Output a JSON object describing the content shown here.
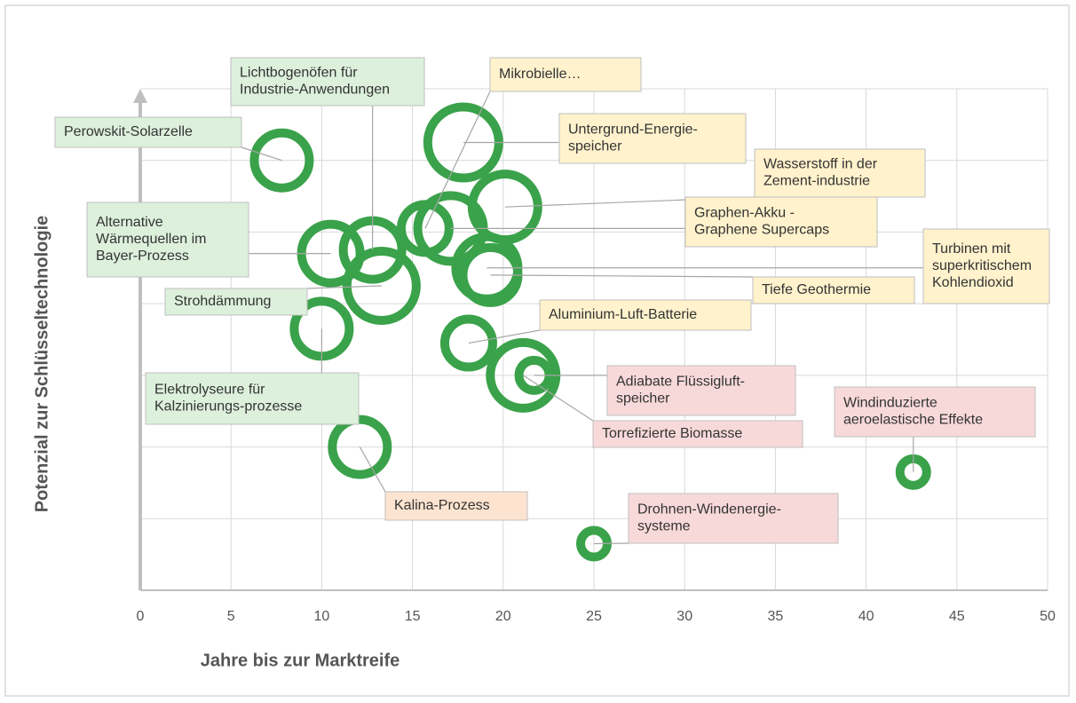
{
  "chart_data": {
    "type": "bubble",
    "xlabel": "Jahre bis zur Marktreife",
    "ylabel": "Potenzial zur Schlüsseltechnologie",
    "xlim": [
      0,
      50
    ],
    "xticks": [
      0,
      5,
      10,
      15,
      20,
      25,
      30,
      35,
      40,
      45,
      50
    ],
    "ylim": [
      0,
      7
    ],
    "yticks": [
      0,
      1,
      2,
      3,
      4,
      5,
      6,
      7
    ],
    "grid": true,
    "color": "#3aa24a",
    "points": [
      {
        "label": [
          "Perowskit-Solarzelle"
        ],
        "x": 7.8,
        "y": 6.0,
        "size": 36,
        "label_color": "#dcf0dc"
      },
      {
        "label": [
          "Lichtbogenöfen für",
          "Industrie-Anwendungen"
        ],
        "x": 12.8,
        "y": 4.75,
        "size": 38,
        "label_color": "#dcf0dc"
      },
      {
        "label": [
          "Alternative",
          "Wärmequellen im",
          "Bayer-Prozess"
        ],
        "x": 10.5,
        "y": 4.7,
        "size": 38,
        "label_color": "#dcf0dc"
      },
      {
        "label": [
          "Strohdämmung"
        ],
        "x": 13.3,
        "y": 4.25,
        "size": 44,
        "label_color": "#dcf0dc"
      },
      {
        "label": [
          "Elektrolyseure für",
          "Kalzinierungs-prozesse"
        ],
        "x": 10.0,
        "y": 3.65,
        "size": 36,
        "label_color": "#dcf0dc"
      },
      {
        "label": [
          "Mikrobielle…"
        ],
        "x": 15.7,
        "y": 5.05,
        "size": 32,
        "label_color": "#fff2cc"
      },
      {
        "label": [
          "Untergrund-Energie-",
          "speicher"
        ],
        "x": 17.8,
        "y": 6.25,
        "size": 45,
        "label_color": "#fff2cc"
      },
      {
        "label": [
          "Wasserstoff in der",
          "Zement-industrie"
        ],
        "x": 20.1,
        "y": 5.35,
        "size": 42,
        "label_color": "#fff2cc"
      },
      {
        "label": [
          "Graphen-Akku -",
          "Graphene Supercaps"
        ],
        "x": 17.1,
        "y": 5.05,
        "size": 42,
        "label_color": "#fff2cc"
      },
      {
        "label": [
          "Turbinen mit",
          "superkritischem",
          "Kohlendioxid"
        ],
        "x": 19.1,
        "y": 4.5,
        "size": 40,
        "label_color": "#fff2cc"
      },
      {
        "label": [
          "Tiefe Geothermie"
        ],
        "x": 19.3,
        "y": 4.4,
        "size": 36,
        "label_color": "#fff2cc"
      },
      {
        "label": [
          "Aluminium-Luft-Batterie"
        ],
        "x": 18.1,
        "y": 3.45,
        "size": 32,
        "label_color": "#fff2cc"
      },
      {
        "label": [
          "Adiabate Flüssigluft-",
          "speicher"
        ],
        "x": 21.7,
        "y": 3.0,
        "size": 22,
        "label_color": "#f8d9d9"
      },
      {
        "label": [
          "Torrefizierte Biomasse"
        ],
        "x": 21.1,
        "y": 3.0,
        "size": 42,
        "label_color": "#f8d9d9"
      },
      {
        "label": [
          "Windinduzierte",
          "aeroelastische Effekte"
        ],
        "x": 42.6,
        "y": 1.65,
        "size": 20,
        "label_color": "#f8d9d9"
      },
      {
        "label": [
          "Kalina-Prozess"
        ],
        "x": 12.1,
        "y": 2.0,
        "size": 36,
        "label_color": "#fde4d0"
      },
      {
        "label": [
          "Drohnen-Windenergie-",
          "systeme"
        ],
        "x": 25.0,
        "y": 0.65,
        "size": 20,
        "label_color": "#f8d9d9"
      }
    ]
  }
}
